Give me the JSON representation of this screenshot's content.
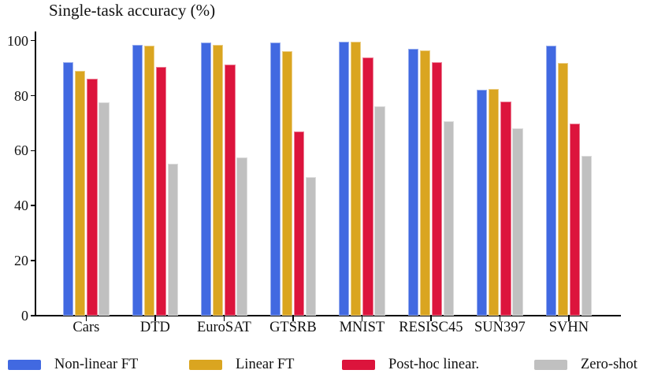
{
  "chart_data": {
    "type": "bar",
    "title": "Single-task accuracy (%)",
    "xlabel": "",
    "ylabel": "",
    "ylim": [
      0,
      100
    ],
    "yticks": [
      0,
      20,
      40,
      60,
      80,
      100
    ],
    "grid": false,
    "legend_position": "bottom",
    "categories": [
      "Cars",
      "DTD",
      "EuroSAT",
      "GTSRB",
      "MNIST",
      "RESISC45",
      "SUN397",
      "SVHN"
    ],
    "series": [
      {
        "name": "Non-linear FT",
        "color": "#4169E1",
        "values": [
          92.2,
          98.4,
          99.2,
          99.2,
          99.7,
          97.0,
          82.2,
          98.2
        ]
      },
      {
        "name": "Linear FT",
        "color": "#DAA520",
        "values": [
          89.1,
          98.1,
          98.4,
          96.1,
          99.5,
          96.6,
          82.4,
          91.8
        ]
      },
      {
        "name": "Post-hoc linear.",
        "color": "#DC143C",
        "values": [
          86.3,
          90.4,
          91.2,
          67.1,
          93.9,
          92.3,
          77.9,
          69.9
        ]
      },
      {
        "name": "Zero-shot",
        "color": "#C0C0C0",
        "values": [
          77.6,
          55.2,
          57.6,
          50.3,
          76.2,
          70.8,
          68.0,
          58.1
        ]
      }
    ],
    "colors": {
      "axis": "#000000",
      "text": "#111111",
      "background": "#ffffff"
    }
  }
}
